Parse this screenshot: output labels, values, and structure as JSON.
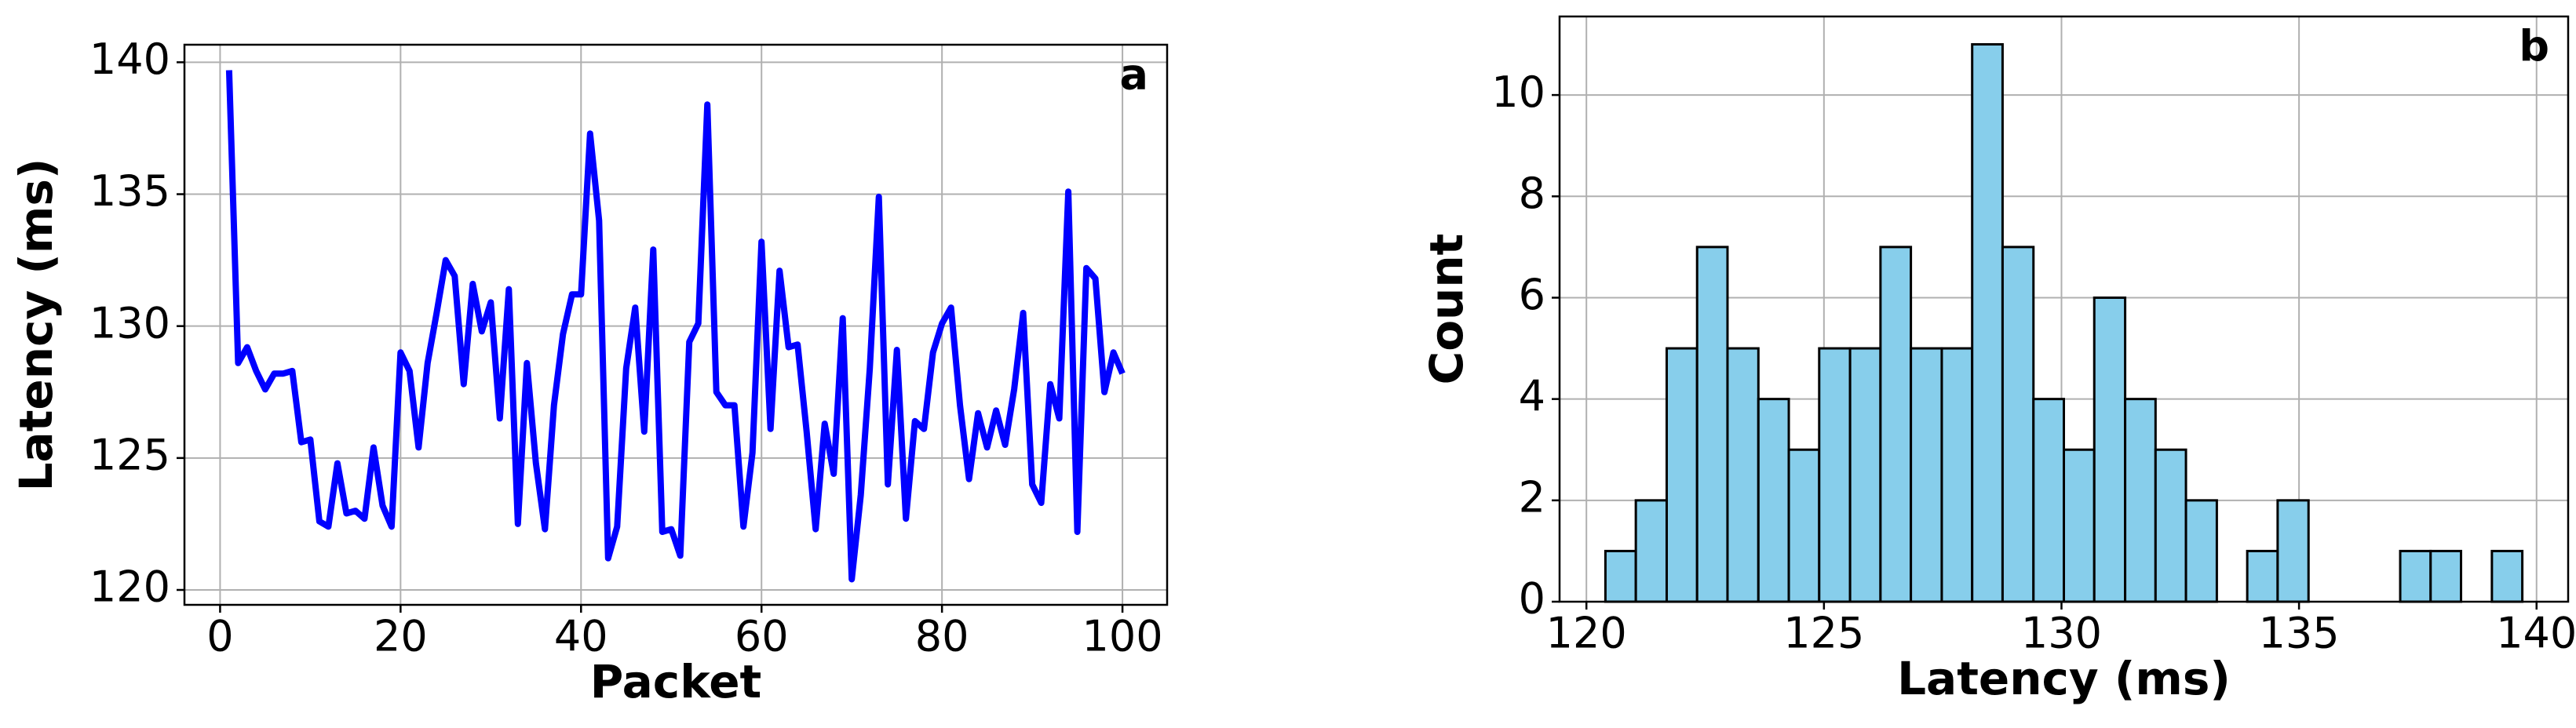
{
  "chart_data": [
    {
      "type": "line",
      "xlabel": "Packet",
      "ylabel": "Latency (ms)",
      "annotation": "a",
      "x": [
        1,
        2,
        3,
        4,
        5,
        6,
        7,
        8,
        9,
        10,
        11,
        12,
        13,
        14,
        15,
        16,
        17,
        18,
        19,
        20,
        21,
        22,
        23,
        24,
        25,
        26,
        27,
        28,
        29,
        30,
        31,
        32,
        33,
        34,
        35,
        36,
        37,
        38,
        39,
        40,
        41,
        42,
        43,
        44,
        45,
        46,
        47,
        48,
        49,
        50,
        51,
        52,
        53,
        54,
        55,
        56,
        57,
        58,
        59,
        60,
        61,
        62,
        63,
        64,
        65,
        66,
        67,
        68,
        69,
        70,
        71,
        72,
        73,
        74,
        75,
        76,
        77,
        78,
        79,
        80,
        81,
        82,
        83,
        84,
        85,
        86,
        87,
        88,
        89,
        90,
        91,
        92,
        93,
        94,
        95,
        96,
        97,
        98,
        99,
        100
      ],
      "series": [
        {
          "name": "Latency",
          "color": "#0000ff",
          "values": [
            139.7,
            128.6,
            129.2,
            128.3,
            127.6,
            128.2,
            128.2,
            128.3,
            125.6,
            125.7,
            122.6,
            122.4,
            124.8,
            122.9,
            123.0,
            122.7,
            125.4,
            123.2,
            122.4,
            129.0,
            128.3,
            125.4,
            128.6,
            130.5,
            132.5,
            131.9,
            127.8,
            131.6,
            129.8,
            130.9,
            126.5,
            131.4,
            122.5,
            128.6,
            124.8,
            122.3,
            127.0,
            129.7,
            131.2,
            131.2,
            137.3,
            134.0,
            121.2,
            122.4,
            128.4,
            130.7,
            126.0,
            132.9,
            122.2,
            122.3,
            121.3,
            129.4,
            130.1,
            138.4,
            127.5,
            127.0,
            127.0,
            122.4,
            125.2,
            133.2,
            126.1,
            132.1,
            129.2,
            129.3,
            126.0,
            122.3,
            126.3,
            124.4,
            130.3,
            120.4,
            123.6,
            128.4,
            134.9,
            124.0,
            129.1,
            122.7,
            126.4,
            126.1,
            129.0,
            130.1,
            130.7,
            127.0,
            124.2,
            126.7,
            125.4,
            126.8,
            125.5,
            127.6,
            130.5,
            124.0,
            123.3,
            127.8,
            126.5,
            135.1,
            122.2,
            132.2,
            131.8,
            127.5,
            129.0,
            128.2
          ]
        }
      ],
      "xlim": [
        -3.95,
        104.95
      ],
      "xticks": [
        0,
        20,
        40,
        60,
        80,
        100
      ],
      "ylim": [
        119.435,
        140.665
      ],
      "yticks": [
        120,
        125,
        130,
        135,
        140
      ],
      "grid": true
    },
    {
      "type": "histogram",
      "xlabel": "Latency (ms)",
      "ylabel": "Count",
      "annotation": "b",
      "color": "#87ceeb",
      "edgecolor": "#000000",
      "bins": [
        120.4,
        121.04,
        121.69,
        122.33,
        122.97,
        123.62,
        124.26,
        124.9,
        125.55,
        126.19,
        126.83,
        127.48,
        128.12,
        128.76,
        129.41,
        130.05,
        130.69,
        131.34,
        131.98,
        132.62,
        133.27,
        133.91,
        134.55,
        135.2,
        135.84,
        136.48,
        137.13,
        137.77,
        138.41,
        139.06,
        139.7
      ],
      "values": [
        1,
        2,
        5,
        7,
        5,
        4,
        3,
        5,
        5,
        7,
        5,
        5,
        11,
        7,
        4,
        3,
        6,
        4,
        3,
        2,
        0,
        1,
        2,
        0,
        0,
        0,
        1,
        1,
        0,
        1
      ],
      "xlim": [
        119.435,
        140.665
      ],
      "xticks": [
        120,
        125,
        130,
        135,
        140
      ],
      "ylim": [
        0,
        11.55
      ],
      "yticks": [
        0,
        2,
        4,
        6,
        8,
        10
      ],
      "grid": true
    }
  ]
}
